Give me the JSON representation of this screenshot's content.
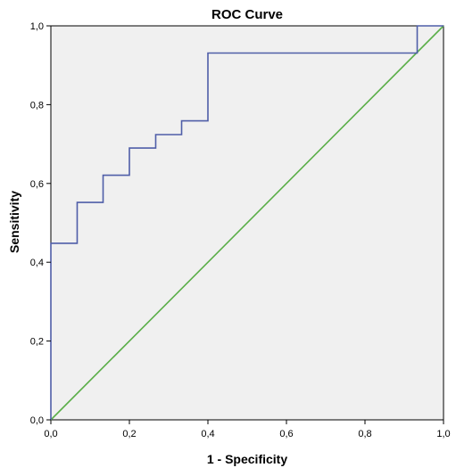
{
  "chart_data": {
    "type": "line",
    "title": "ROC Curve",
    "xlabel": "1 - Specificity",
    "ylabel": "Sensitivity",
    "xlim": [
      0,
      1
    ],
    "ylim": [
      0,
      1
    ],
    "x_ticks": [
      "0,0",
      "0,2",
      "0,4",
      "0,6",
      "0,8",
      "1,0"
    ],
    "y_ticks": [
      "0,0",
      "0,2",
      "0,4",
      "0,6",
      "0,8",
      "1,0"
    ],
    "grid": false,
    "background_color": "#f0f0f0",
    "series": [
      {
        "line_type": "step",
        "color": "#4f5ea8",
        "x": [
          0.0,
          0.0,
          0.067,
          0.067,
          0.133,
          0.133,
          0.2,
          0.2,
          0.267,
          0.267,
          0.333,
          0.333,
          0.4,
          0.4,
          0.933,
          0.933,
          1.0
        ],
        "y": [
          0.0,
          0.448,
          0.448,
          0.552,
          0.552,
          0.621,
          0.621,
          0.69,
          0.69,
          0.724,
          0.724,
          0.759,
          0.759,
          0.931,
          0.931,
          1.0,
          1.0
        ]
      },
      {
        "line_type": "reference",
        "color": "#5aae48",
        "x": [
          0,
          1
        ],
        "y": [
          0,
          1
        ]
      }
    ]
  }
}
